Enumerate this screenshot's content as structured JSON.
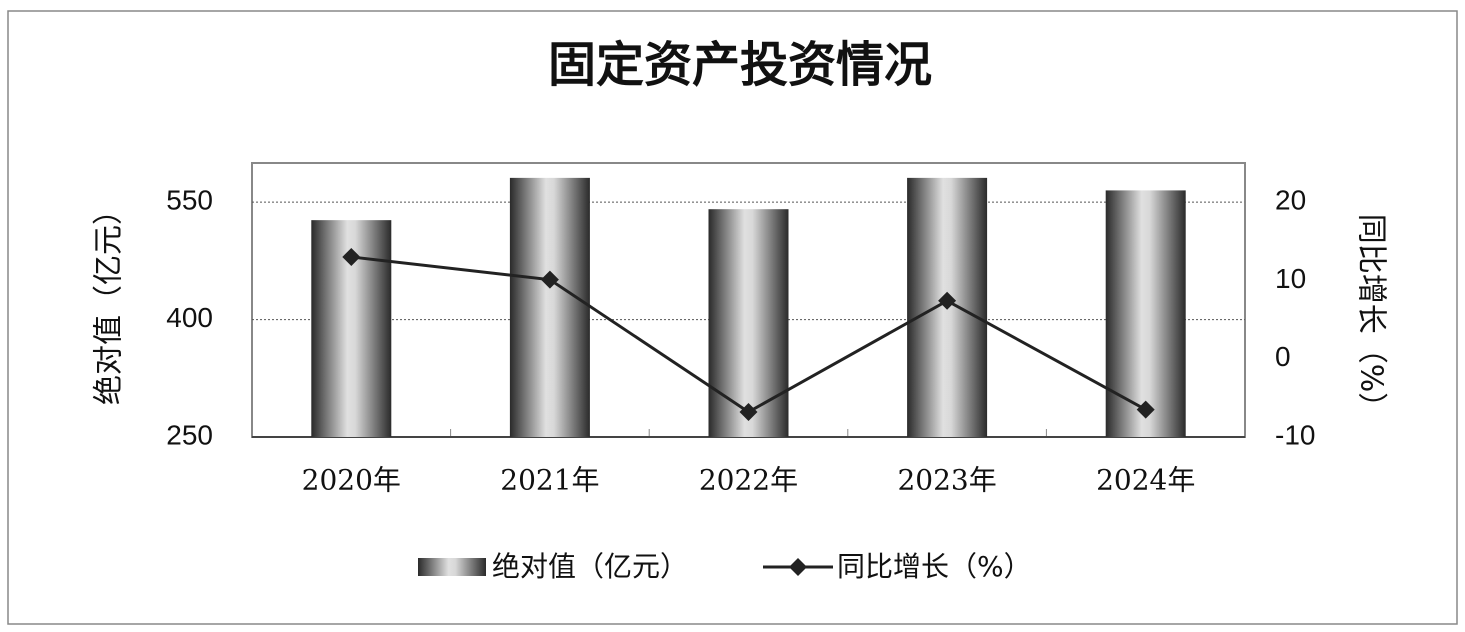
{
  "chart_data": {
    "type": "bar_line",
    "title": "固定资产投资情况",
    "y_label": "绝对值（亿元）",
    "y2_label": "同比增长（%）",
    "categories": [
      "2020年",
      "2021年",
      "2022年",
      "2023年",
      "2024年"
    ],
    "series": [
      {
        "name": "绝对值（亿元）",
        "type": "bar",
        "color": "#c8c8c8",
        "values": [
          527,
          581,
          541,
          581,
          565
        ]
      },
      {
        "name": "同比增长（%）",
        "type": "line",
        "axis": "y2",
        "color": "#222222",
        "values": [
          13.0,
          10.1,
          -6.8,
          7.4,
          -6.5
        ]
      }
    ],
    "ylim": [
      250,
      600
    ],
    "yticks": [
      250,
      400,
      550
    ],
    "y2lim": [
      -10,
      25
    ],
    "y2ticks": [
      -10,
      0,
      10,
      20
    ],
    "grid": true,
    "legend": "bottom"
  }
}
